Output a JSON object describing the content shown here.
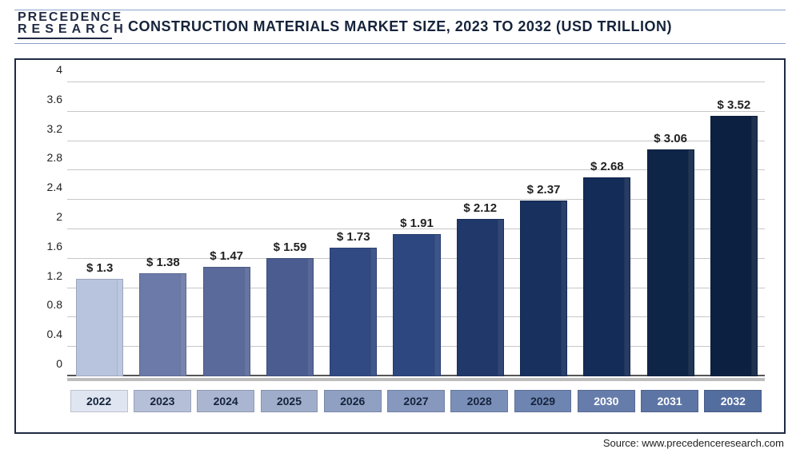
{
  "logo": {
    "line1": "PRECEDENCE",
    "line2": "RESEARCH"
  },
  "title": "CONSTRUCTION MATERIALS MARKET SIZE, 2023 TO 2032 (USD TRILLION)",
  "source_label": "Source: www.precedenceresearch.com",
  "chart": {
    "type": "bar",
    "background_color": "#ffffff",
    "grid_color": "#c7c7c7",
    "axis_color": "#555555",
    "title_fontsize": 18,
    "label_fontsize": 15,
    "tick_fontsize": 14,
    "ylim": [
      0,
      4
    ],
    "ytick_step": 0.4,
    "yticks": [
      0,
      0.4,
      0.8,
      1.2,
      1.6,
      2,
      2.4,
      2.8,
      3.2,
      3.6,
      4
    ],
    "bar_width": 0.72,
    "categories": [
      "2022",
      "2023",
      "2024",
      "2025",
      "2026",
      "2027",
      "2028",
      "2029",
      "2030",
      "2031",
      "2032"
    ],
    "values": [
      1.3,
      1.38,
      1.47,
      1.59,
      1.73,
      1.91,
      2.12,
      2.37,
      2.68,
      3.06,
      3.52
    ],
    "value_labels": [
      "$ 1.3",
      "$ 1.38",
      "$ 1.47",
      "$ 1.59",
      "$ 1.73",
      "$ 1.91",
      "$ 2.12",
      "$ 2.37",
      "$ 2.68",
      "$ 3.06",
      "$ 3.52"
    ],
    "bar_colors": [
      "#b8c3de",
      "#6b7aa8",
      "#5a6a9a",
      "#4a5c90",
      "#324a84",
      "#2d4780",
      "#20386a",
      "#17305e",
      "#142c58",
      "#0f2548",
      "#0c2142"
    ],
    "xcell_fill": [
      "#dfe5f1",
      "#b5bfd8",
      "#a9b5d1",
      "#9fadca",
      "#8fa0c3",
      "#8698be",
      "#7a8fb8",
      "#6f85b1",
      "#667dab",
      "#5d75a5",
      "#546d9f"
    ],
    "xcell_text": [
      "#15233b",
      "#15233b",
      "#15233b",
      "#15233b",
      "#15233b",
      "#15233b",
      "#15233b",
      "#15233b",
      "#ffffff",
      "#ffffff",
      "#ffffff"
    ]
  }
}
